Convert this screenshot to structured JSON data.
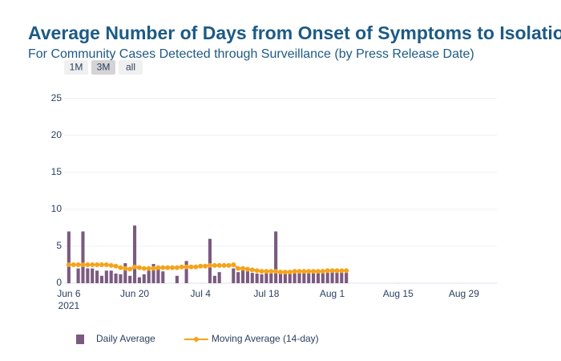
{
  "chart_data": {
    "type": "bar_line",
    "title": "Average Number of Days from Onset of Symptoms to Isolation",
    "subtitle": "For Community Cases Detected through Surveillance (by Press Release Date)",
    "range_buttons": [
      "1M",
      "3M",
      "all"
    ],
    "active_button": 1,
    "x": [
      "2021-06-06",
      "2021-06-07",
      "2021-06-08",
      "2021-06-09",
      "2021-06-10",
      "2021-06-11",
      "2021-06-12",
      "2021-06-13",
      "2021-06-14",
      "2021-06-15",
      "2021-06-16",
      "2021-06-17",
      "2021-06-18",
      "2021-06-19",
      "2021-06-20",
      "2021-06-21",
      "2021-06-22",
      "2021-06-23",
      "2021-06-24",
      "2021-06-25",
      "2021-06-26",
      "2021-06-27",
      "2021-06-28",
      "2021-06-29",
      "2021-06-30",
      "2021-07-01",
      "2021-07-02",
      "2021-07-03",
      "2021-07-04",
      "2021-07-05",
      "2021-07-06",
      "2021-07-07",
      "2021-07-08",
      "2021-07-09",
      "2021-07-10",
      "2021-07-11",
      "2021-07-12",
      "2021-07-13",
      "2021-07-14",
      "2021-07-15",
      "2021-07-16",
      "2021-07-17",
      "2021-07-18",
      "2021-07-19",
      "2021-07-20",
      "2021-07-21",
      "2021-07-22",
      "2021-07-23",
      "2021-07-24",
      "2021-07-25",
      "2021-07-26",
      "2021-07-27",
      "2021-07-28",
      "2021-07-29",
      "2021-07-30",
      "2021-07-31",
      "2021-08-01",
      "2021-08-02",
      "2021-08-03",
      "2021-08-04"
    ],
    "series": [
      {
        "name": "Daily Average",
        "kind": "bar",
        "color": "#7b5a80",
        "values": [
          7,
          null,
          2,
          7,
          2,
          2,
          1.7,
          1,
          1.7,
          1.7,
          1.3,
          1.2,
          2.7,
          1,
          7.8,
          0.8,
          1.2,
          1.7,
          2.6,
          1.9,
          1.6,
          null,
          null,
          1,
          null,
          3,
          null,
          null,
          null,
          null,
          6,
          1,
          1.5,
          null,
          null,
          2,
          1.5,
          1.8,
          1.6,
          1.4,
          1.3,
          1.2,
          1.4,
          1.3,
          7,
          1.3,
          1.3,
          1.4,
          1.4,
          1.4,
          1.4,
          1.4,
          1.4,
          1.5,
          1.4,
          1.4,
          1.5,
          1.4,
          1.4,
          1.4
        ]
      },
      {
        "name": "Moving Average (14-day)",
        "kind": "line",
        "color": "#f5a31a",
        "values": [
          2.5,
          2.5,
          2.5,
          2.5,
          2.5,
          2.5,
          2.5,
          2.5,
          2.5,
          2.4,
          2.3,
          2.1,
          2.0,
          1.9,
          2.2,
          2.1,
          2.0,
          2.0,
          2.0,
          2.1,
          2.1,
          2.1,
          2.1,
          2.1,
          2.2,
          2.2,
          2.2,
          2.2,
          2.3,
          2.3,
          2.4,
          2.4,
          2.4,
          2.4,
          2.4,
          2.5,
          2.0,
          2.0,
          1.9,
          1.8,
          1.7,
          1.6,
          1.6,
          1.6,
          1.6,
          1.5,
          1.5,
          1.5,
          1.6,
          1.6,
          1.6,
          1.6,
          1.6,
          1.6,
          1.6,
          1.7,
          1.7,
          1.7,
          1.7,
          1.7
        ]
      }
    ],
    "xlim": [
      "2021-06-05",
      "2021-09-05"
    ],
    "xticks": [
      {
        "value": "2021-06-06",
        "label": "Jun 6"
      },
      {
        "value": "2021-06-20",
        "label": "Jun 20"
      },
      {
        "value": "2021-07-04",
        "label": "Jul 4"
      },
      {
        "value": "2021-07-18",
        "label": "Jul 18"
      },
      {
        "value": "2021-08-01",
        "label": "Aug 1"
      },
      {
        "value": "2021-08-15",
        "label": "Aug 15"
      },
      {
        "value": "2021-08-29",
        "label": "Aug 29"
      }
    ],
    "xtick_year": "2021",
    "ylim": [
      0,
      25.5
    ],
    "yticks": [
      0,
      5,
      10,
      15,
      20,
      25
    ],
    "grid": true
  }
}
